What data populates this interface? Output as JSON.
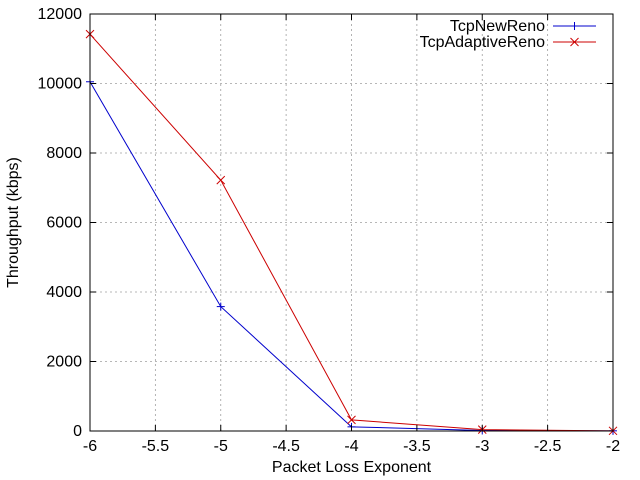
{
  "chart_data": {
    "type": "line",
    "title": "",
    "xlabel": "Packet Loss Exponent",
    "ylabel": "Throughput (kbps)",
    "xlim": [
      -6,
      -2
    ],
    "ylim": [
      0,
      12000
    ],
    "xticks": [
      -6,
      -5.5,
      -5,
      -4.5,
      -4,
      -3.5,
      -3,
      -2.5,
      -2
    ],
    "xtick_labels": [
      "-6",
      "-5.5",
      "-5",
      "-4.5",
      "-4",
      "-3.5",
      "-3",
      "-2.5",
      "-2"
    ],
    "yticks": [
      0,
      2000,
      4000,
      6000,
      8000,
      10000,
      12000
    ],
    "ytick_labels": [
      "0",
      "2000",
      "4000",
      "6000",
      "8000",
      "10000",
      "12000"
    ],
    "grid": true,
    "legend_position": "top-right",
    "series": [
      {
        "name": "TcpNewReno",
        "color": "#0000cc",
        "marker": "plus",
        "x": [
          -6,
          -5,
          -4,
          -3,
          -2
        ],
        "y": [
          10050,
          3580,
          120,
          15,
          5
        ]
      },
      {
        "name": "TcpAdaptiveReno",
        "color": "#cc0000",
        "marker": "cross",
        "x": [
          -6,
          -5,
          -4,
          -3,
          -2
        ],
        "y": [
          11420,
          7220,
          320,
          40,
          5
        ]
      }
    ]
  }
}
